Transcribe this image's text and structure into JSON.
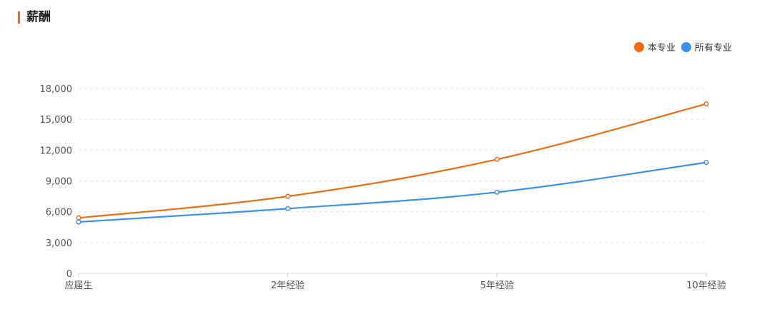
{
  "section": {
    "title": "薪酬"
  },
  "colors": {
    "accent": "#f26b11",
    "series_major": "#f26b11",
    "series_all": "#3d8ff0"
  },
  "chart_data": {
    "type": "line",
    "title": "",
    "xlabel": "",
    "ylabel": "",
    "categories": [
      "应届生",
      "2年经验",
      "5年经验",
      "10年经验"
    ],
    "ylim": [
      0,
      18000
    ],
    "yticks": [
      "0",
      "3,000",
      "6,000",
      "9,000",
      "12,000",
      "15,000",
      "18,000"
    ],
    "ytick_values": [
      0,
      3000,
      6000,
      9000,
      12000,
      15000,
      18000
    ],
    "grid": true,
    "legend_position": "top-right",
    "series": [
      {
        "name": "本专业",
        "values": [
          5400,
          7500,
          11100,
          16500
        ],
        "color": "#f26b11"
      },
      {
        "name": "所有专业",
        "values": [
          5000,
          6300,
          7900,
          10800
        ],
        "color": "#3d8ff0"
      }
    ]
  }
}
